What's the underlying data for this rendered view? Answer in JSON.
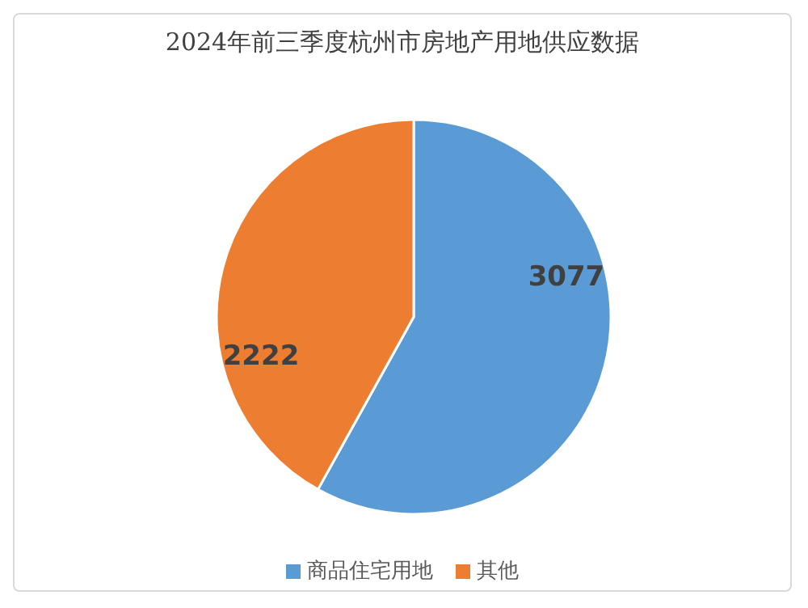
{
  "chart_data": {
    "type": "pie",
    "title": "2024年前三季度杭州市房地产用地供应数据",
    "categories": [
      "商品住宅用地",
      "其他"
    ],
    "values": [
      3077,
      2222
    ],
    "colors": [
      "#5b9bd5",
      "#ed7d31"
    ],
    "data_labels": true,
    "legend": "bottom"
  }
}
